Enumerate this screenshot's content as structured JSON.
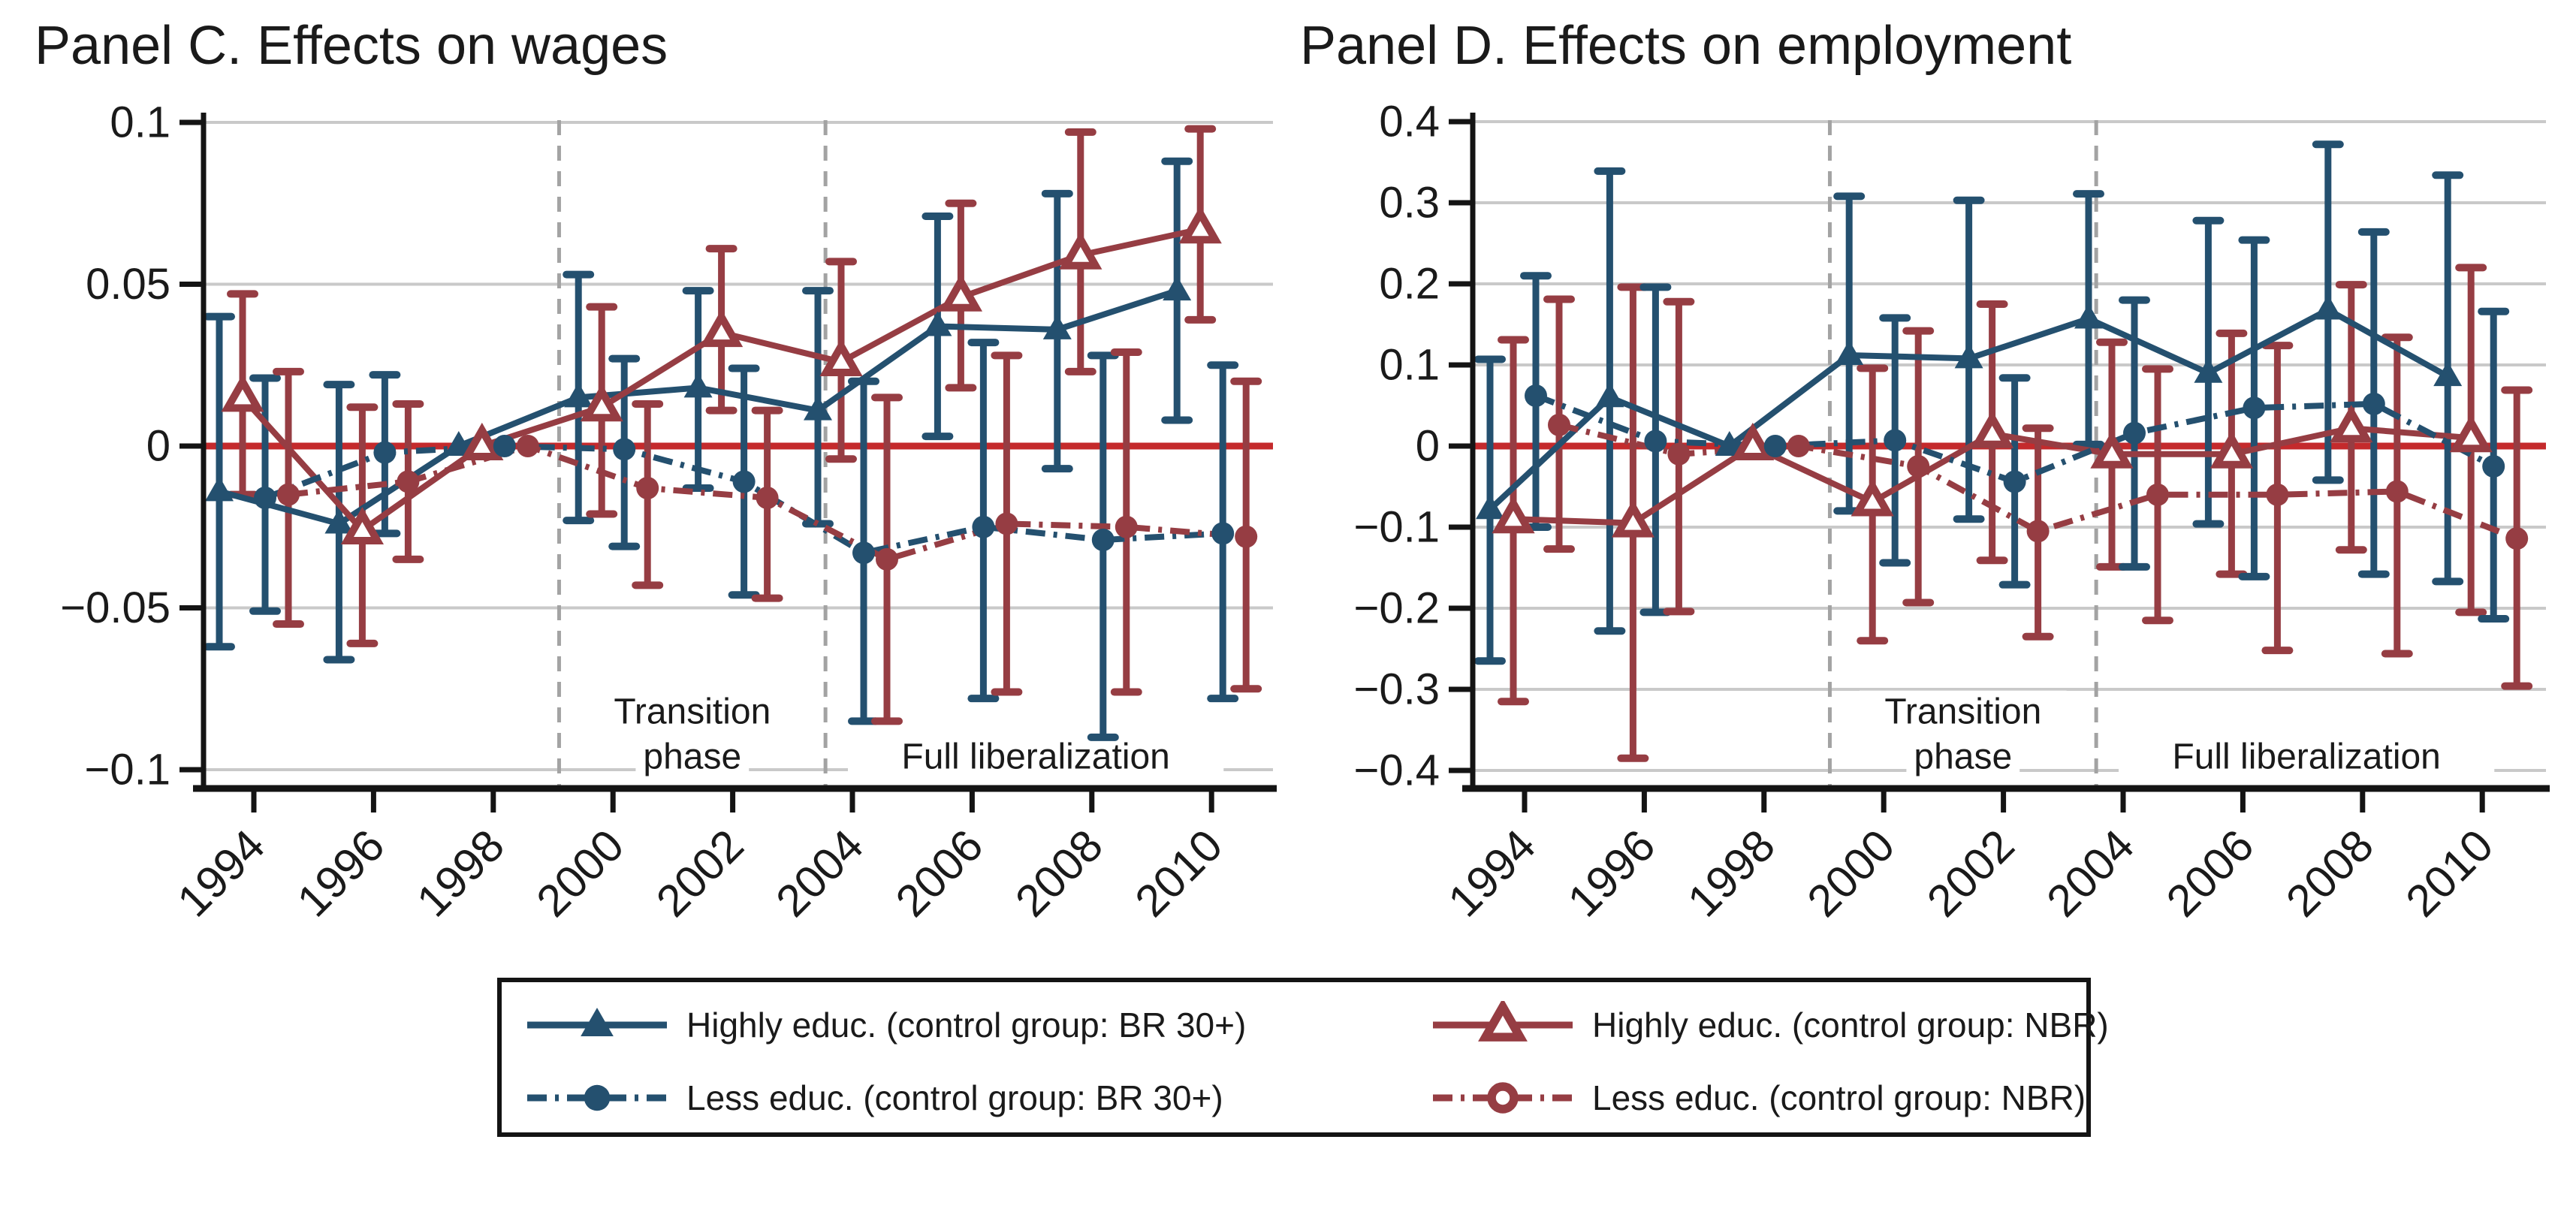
{
  "colors": {
    "navy": "#24506F",
    "maroon": "#963D43",
    "zero_line": "#C42A2C",
    "grid": "#C9C9C9",
    "phase_line": "#A3A3A3",
    "axis": "#141414",
    "text": "#1A1A1A"
  },
  "legend": {
    "entries": [
      {
        "label": "Highly educ. (control group: BR 30+)",
        "color": "navy",
        "marker": "triangle_filled",
        "line": "solid"
      },
      {
        "label": "Highly educ. (control group: NBR)",
        "color": "maroon",
        "marker": "triangle_open",
        "line": "solid"
      },
      {
        "label": "Less educ. (control group: BR 30+)",
        "color": "navy",
        "marker": "circle_filled",
        "line": "dashdot"
      },
      {
        "label": "Less educ. (control group: NBR)",
        "color": "maroon",
        "marker": "circle_open",
        "line": "dashdot"
      }
    ]
  },
  "chart_data": [
    {
      "type": "line",
      "title": "Panel C. Effects on wages",
      "x": [
        1994,
        1996,
        1998,
        2000,
        2002,
        2004,
        2006,
        2008,
        2010
      ],
      "x_tick_labels": [
        "1994",
        "1996",
        "1998",
        "2000",
        "2002",
        "2004",
        "2006",
        "2008",
        "2010"
      ],
      "ylim": [
        -0.1,
        0.1
      ],
      "y_ticks": [
        0.1,
        0.05,
        0,
        -0.05,
        -0.1
      ],
      "y_tick_labels": [
        "0.1",
        "0.05",
        "0",
        "−0.05",
        "−0.1"
      ],
      "grid": true,
      "zero_line_y": 0,
      "reference_year": 1998,
      "phase_change_years": [
        1999.1,
        2003.55
      ],
      "annotations": {
        "transition_line1": "Transition",
        "transition_line2": "phase",
        "full": "Full liberalization"
      },
      "series": [
        {
          "name": "Highly educ. (control group: BR 30+)",
          "key": "highly_br",
          "color": "navy",
          "marker": "triangle_filled",
          "line": "solid",
          "values": [
            -0.014,
            -0.024,
            0,
            0.015,
            0.018,
            0.011,
            0.037,
            0.036,
            0.048
          ],
          "ci_low": [
            -0.062,
            -0.066,
            null,
            -0.023,
            -0.013,
            -0.024,
            0.003,
            -0.007,
            0.008
          ],
          "ci_high": [
            0.04,
            0.019,
            null,
            0.053,
            0.048,
            0.048,
            0.071,
            0.078,
            0.088
          ]
        },
        {
          "name": "Highly educ. (control group: NBR)",
          "key": "highly_nbr",
          "color": "maroon",
          "marker": "triangle_open",
          "line": "solid",
          "values": [
            0.015,
            -0.026,
            0,
            0.012,
            0.035,
            0.026,
            0.046,
            0.059,
            0.067
          ],
          "ci_low": [
            -0.015,
            -0.061,
            null,
            -0.021,
            0.011,
            -0.004,
            0.018,
            0.023,
            0.039
          ],
          "ci_high": [
            0.047,
            0.012,
            null,
            0.043,
            0.061,
            0.057,
            0.075,
            0.097,
            0.098
          ]
        },
        {
          "name": "Less educ. (control group: BR 30+)",
          "key": "less_br",
          "color": "navy",
          "marker": "circle_filled",
          "line": "dashdot",
          "values": [
            -0.016,
            -0.002,
            0,
            -0.001,
            -0.011,
            -0.033,
            -0.025,
            -0.029,
            -0.027
          ],
          "ci_low": [
            -0.051,
            -0.027,
            null,
            -0.031,
            -0.046,
            -0.085,
            -0.078,
            -0.09,
            -0.078
          ],
          "ci_high": [
            0.021,
            0.022,
            null,
            0.027,
            0.024,
            0.02,
            0.032,
            0.028,
            0.025
          ]
        },
        {
          "name": "Less educ. (control group: NBR)",
          "key": "less_nbr",
          "color": "maroon",
          "marker": "circle_filled_small",
          "line": "dashdot",
          "values": [
            -0.015,
            -0.011,
            0,
            -0.013,
            -0.016,
            -0.035,
            -0.024,
            -0.025,
            -0.028
          ],
          "ci_low": [
            -0.055,
            -0.035,
            null,
            -0.043,
            -0.047,
            -0.085,
            -0.076,
            -0.076,
            -0.075
          ],
          "ci_high": [
            0.023,
            0.013,
            null,
            0.013,
            0.011,
            0.015,
            0.028,
            0.029,
            0.02
          ]
        }
      ]
    },
    {
      "type": "line",
      "title": "Panel D. Effects on employment",
      "x": [
        1994,
        1996,
        1998,
        2000,
        2002,
        2004,
        2006,
        2008,
        2010
      ],
      "x_tick_labels": [
        "1994",
        "1996",
        "1998",
        "2000",
        "2002",
        "2004",
        "2006",
        "2008",
        "2010"
      ],
      "ylim": [
        -0.4,
        0.4
      ],
      "y_ticks": [
        0.4,
        0.3,
        0.2,
        0.1,
        0,
        -0.1,
        -0.2,
        -0.3,
        -0.4
      ],
      "y_tick_labels": [
        "0.4",
        "0.3",
        "0.2",
        "0.1",
        "0",
        "−0.1",
        "−0.2",
        "−0.3",
        "−0.4"
      ],
      "grid": true,
      "zero_line_y": 0,
      "reference_year": 1998,
      "phase_change_years": [
        1999.1,
        2003.55
      ],
      "annotations": {
        "transition_line1": "Transition",
        "transition_line2": "phase",
        "full": "Full liberalization"
      },
      "series": [
        {
          "name": "Highly educ. (control group: BR 30+)",
          "key": "highly_br",
          "color": "navy",
          "marker": "triangle_filled",
          "line": "solid",
          "values": [
            -0.078,
            0.06,
            0,
            0.112,
            0.108,
            0.157,
            0.09,
            0.168,
            0.086
          ],
          "ci_low": [
            -0.265,
            -0.228,
            null,
            -0.08,
            -0.09,
            0.002,
            -0.096,
            -0.042,
            -0.167
          ],
          "ci_high": [
            0.107,
            0.339,
            null,
            0.308,
            0.303,
            0.311,
            0.278,
            0.372,
            0.334
          ]
        },
        {
          "name": "Highly educ. (control group: NBR)",
          "key": "highly_nbr",
          "color": "maroon",
          "marker": "triangle_open",
          "line": "solid",
          "values": [
            -0.09,
            -0.095,
            0,
            -0.069,
            0.015,
            -0.01,
            -0.01,
            0.022,
            0.01
          ],
          "ci_low": [
            -0.315,
            -0.385,
            null,
            -0.24,
            -0.141,
            -0.149,
            -0.158,
            -0.128,
            -0.205
          ],
          "ci_high": [
            0.131,
            0.196,
            null,
            0.096,
            0.175,
            0.128,
            0.139,
            0.199,
            0.22
          ]
        },
        {
          "name": "Less educ. (control group: BR 30+)",
          "key": "less_br",
          "color": "navy",
          "marker": "circle_filled",
          "line": "dashdot",
          "values": [
            0.062,
            0.006,
            0,
            0.007,
            -0.044,
            0.016,
            0.047,
            0.052,
            -0.025
          ],
          "ci_low": [
            -0.1,
            -0.205,
            null,
            -0.144,
            -0.171,
            -0.149,
            -0.161,
            -0.158,
            -0.213
          ],
          "ci_high": [
            0.21,
            0.196,
            null,
            0.158,
            0.084,
            0.18,
            0.254,
            0.264,
            0.166
          ]
        },
        {
          "name": "Less educ. (control group: NBR)",
          "key": "less_nbr",
          "color": "maroon",
          "marker": "circle_filled_small",
          "line": "dashdot",
          "values": [
            0.026,
            -0.01,
            0,
            -0.025,
            -0.105,
            -0.06,
            -0.06,
            -0.056,
            -0.114
          ],
          "ci_low": [
            -0.127,
            -0.204,
            null,
            -0.193,
            -0.235,
            -0.215,
            -0.252,
            -0.256,
            -0.296
          ],
          "ci_high": [
            0.181,
            0.178,
            null,
            0.142,
            0.022,
            0.095,
            0.124,
            0.134,
            0.069
          ]
        }
      ]
    }
  ]
}
